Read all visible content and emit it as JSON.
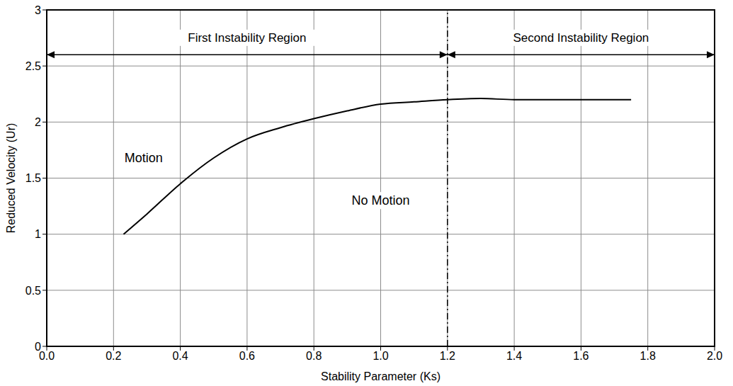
{
  "chart_data": {
    "type": "line",
    "x_label": "Stability Parameter (Ks)",
    "y_label": "Reduced Velocity (Ur)",
    "x": [
      0.23,
      0.3,
      0.4,
      0.5,
      0.6,
      0.7,
      0.8,
      0.9,
      1.0,
      1.1,
      1.2,
      1.3,
      1.4,
      1.5,
      1.6,
      1.75
    ],
    "values": [
      1.0,
      1.18,
      1.45,
      1.68,
      1.85,
      1.95,
      2.03,
      2.1,
      2.16,
      2.18,
      2.2,
      2.21,
      2.2,
      2.2,
      2.2,
      2.2
    ],
    "color": "#000000",
    "line_style": "solid",
    "xlim": [
      0,
      2
    ],
    "ylim": [
      0,
      3
    ],
    "xticks": [
      {
        "value": 0,
        "label": "0.0"
      },
      0.2,
      0.4,
      0.6,
      0.8,
      {
        "value": 1,
        "label": "1.0"
      },
      1.2,
      1.4,
      1.6,
      1.8,
      {
        "value": 2,
        "label": "2.0"
      }
    ],
    "yticks": [
      0,
      0.5,
      1,
      1.5,
      2,
      2.5,
      3
    ],
    "grid": true,
    "regions": [
      {
        "label": "First Instability Region",
        "x": [
          0,
          1.2
        ],
        "y": 2.6
      },
      {
        "label": "Second Instability Region",
        "x": [
          1.2,
          2
        ],
        "y": 2.6
      }
    ],
    "annotations": [
      {
        "text": "Motion",
        "x": 0.29,
        "y": 1.68
      },
      {
        "text": "No Motion",
        "x": 1.0,
        "y": 1.3
      }
    ]
  }
}
